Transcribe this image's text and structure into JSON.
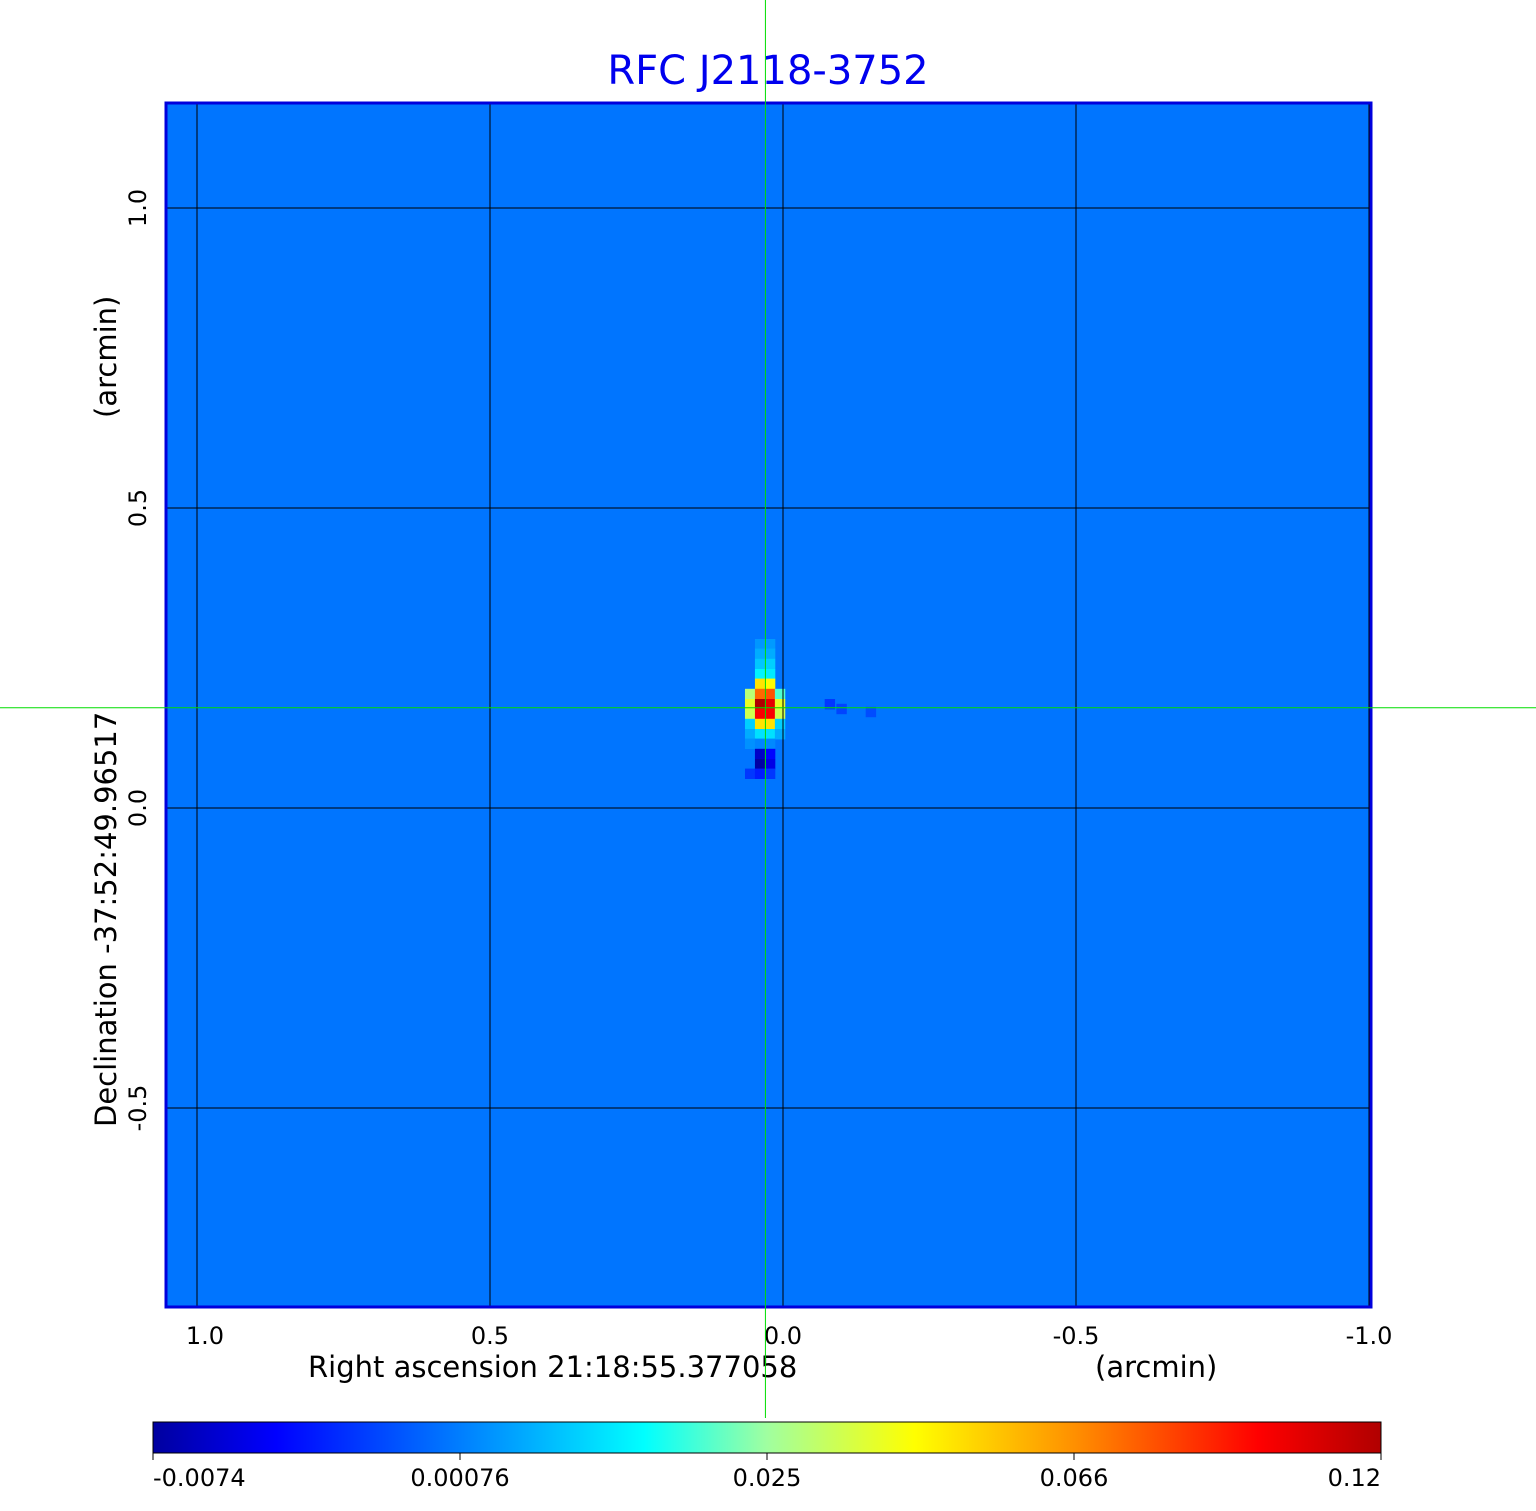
{
  "chart_data": {
    "type": "heatmap",
    "title": "RFC J2118-3752",
    "xlabel": "Right ascension  21:18:55.377058",
    "xlabel_unit": "(arcmin)",
    "ylabel": "Declination  -37:52:49.96517",
    "ylabel_unit": "(arcmin)",
    "x_ticks": [
      1.0,
      0.5,
      0.0,
      -0.5,
      -1.0
    ],
    "x_tick_labels": [
      "1.0",
      "0.5",
      "0.0",
      "-0.5",
      "-1.0"
    ],
    "y_ticks": [
      1.0,
      0.5,
      0.0,
      -0.5
    ],
    "y_tick_labels": [
      "1.0",
      "0.5",
      "0.0",
      "-0.5"
    ],
    "xlim": [
      1.05,
      -1.0
    ],
    "ylim": [
      -0.83,
      1.18
    ],
    "grid": true,
    "crosshair": {
      "ra": 0.03,
      "dec": 0.167,
      "color": "#00dd00"
    },
    "colormap": "jet",
    "colorbar": {
      "ticks": [
        -0.0074,
        0.00076,
        0.025,
        0.066,
        0.12
      ],
      "tick_labels": [
        "-0.0074",
        "0.00076",
        "0.025",
        "0.066",
        "0.12"
      ],
      "placement": "bottom"
    },
    "background_value": 0.0004,
    "cells": [
      [
        0.039,
        0.273,
        0.0035
      ],
      [
        0.022,
        0.273,
        0.004
      ],
      [
        0.039,
        0.257,
        0.006
      ],
      [
        0.022,
        0.257,
        0.006
      ],
      [
        0.039,
        0.24,
        0.009
      ],
      [
        0.022,
        0.24,
        0.01
      ],
      [
        0.039,
        0.223,
        0.014
      ],
      [
        0.022,
        0.223,
        0.013
      ],
      [
        0.039,
        0.207,
        0.05
      ],
      [
        0.022,
        0.207,
        0.045
      ],
      [
        0.056,
        0.19,
        0.03
      ],
      [
        0.039,
        0.19,
        0.075
      ],
      [
        0.022,
        0.19,
        0.08
      ],
      [
        0.005,
        0.19,
        0.02
      ],
      [
        0.056,
        0.173,
        0.04
      ],
      [
        0.039,
        0.173,
        0.12
      ],
      [
        0.022,
        0.173,
        0.105
      ],
      [
        0.005,
        0.173,
        0.04
      ],
      [
        0.056,
        0.157,
        0.035
      ],
      [
        0.039,
        0.157,
        0.1
      ],
      [
        0.022,
        0.157,
        0.1
      ],
      [
        0.005,
        0.157,
        0.035
      ],
      [
        0.056,
        0.14,
        0.01
      ],
      [
        0.039,
        0.14,
        0.05
      ],
      [
        0.022,
        0.14,
        0.05
      ],
      [
        0.005,
        0.14,
        0.01
      ],
      [
        0.056,
        0.123,
        0.006
      ],
      [
        0.039,
        0.123,
        0.012
      ],
      [
        0.022,
        0.123,
        0.012
      ],
      [
        0.005,
        0.123,
        0.006
      ],
      [
        0.056,
        0.107,
        0.003
      ],
      [
        0.039,
        0.107,
        0.0015
      ],
      [
        0.022,
        0.107,
        0.002
      ],
      [
        0.039,
        0.09,
        -0.006
      ],
      [
        0.022,
        0.09,
        -0.004
      ],
      [
        0.039,
        0.073,
        -0.0072
      ],
      [
        0.022,
        0.073,
        -0.005
      ],
      [
        0.056,
        0.057,
        -0.002
      ],
      [
        0.039,
        0.057,
        -0.003
      ],
      [
        0.022,
        0.057,
        -0.002
      ],
      [
        -0.08,
        0.173,
        -0.002
      ],
      [
        -0.1,
        0.165,
        -0.0015
      ],
      [
        -0.15,
        0.16,
        -0.0012
      ]
    ]
  }
}
